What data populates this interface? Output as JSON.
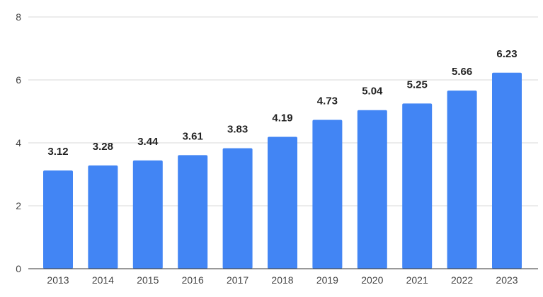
{
  "chart_data": {
    "type": "bar",
    "title": "",
    "xlabel": "",
    "ylabel": "",
    "categories": [
      "2013",
      "2014",
      "2015",
      "2016",
      "2017",
      "2018",
      "2019",
      "2020",
      "2021",
      "2022",
      "2023"
    ],
    "values": [
      3.12,
      3.28,
      3.44,
      3.61,
      3.83,
      4.19,
      4.73,
      5.04,
      5.25,
      5.66,
      6.23
    ],
    "value_labels": [
      "3.12",
      "3.28",
      "3.44",
      "3.61",
      "3.83",
      "4.19",
      "4.73",
      "5.04",
      "5.25",
      "5.66",
      "6.23"
    ],
    "ylim": [
      0,
      8
    ],
    "yticks": [
      "0",
      "2",
      "4",
      "6",
      "8"
    ],
    "grid": true,
    "legend": "none",
    "colors": {
      "bar": "#4285f4",
      "grid": "#d9d9d9",
      "axis": "#333333"
    }
  }
}
